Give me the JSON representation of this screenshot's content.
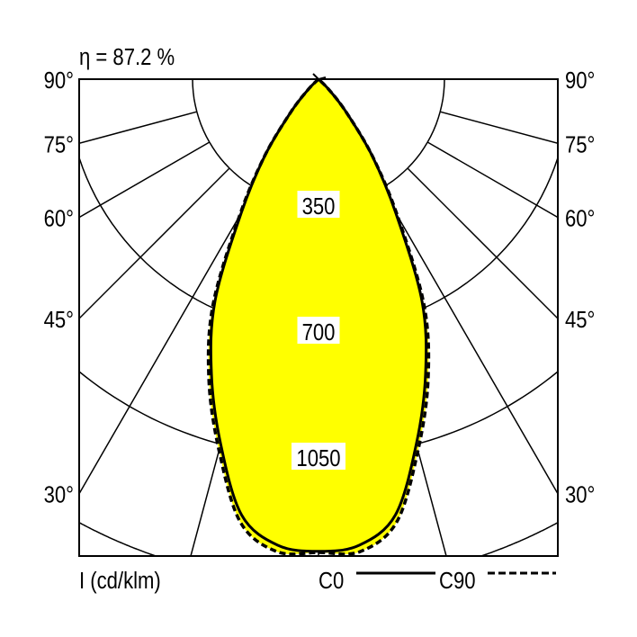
{
  "chart_data": {
    "type": "polar-line",
    "title": "η = 87.2 %",
    "unit_label": "I (cd/klm)",
    "radial_ticks": [
      350,
      700,
      1050,
      1400
    ],
    "radial_tick_labels": [
      "350",
      "700",
      "1050"
    ],
    "angle_lines_deg": [
      0,
      15,
      30,
      45,
      60,
      75,
      90
    ],
    "angle_labels": [
      {
        "angle": 90,
        "text": "90°"
      },
      {
        "angle": 75,
        "text": "75°"
      },
      {
        "angle": 60,
        "text": "60°"
      },
      {
        "angle": 45,
        "text": "45°"
      },
      {
        "angle": 30,
        "text": "30°"
      }
    ],
    "rlim": [
      0,
      1400
    ],
    "fill_color": "#ffff00",
    "legend_placement": "bottom-right",
    "series": [
      {
        "name": "C0",
        "style": "solid",
        "angles": [
          0,
          5,
          10,
          15,
          20,
          25,
          30,
          35,
          40,
          45,
          50
        ],
        "values": [
          1312,
          1300,
          1230,
          1050,
          870,
          680,
          430,
          260,
          120,
          40,
          0
        ]
      },
      {
        "name": "C90",
        "style": "dashed",
        "angles": [
          0,
          5,
          10,
          15,
          20,
          25,
          30,
          35,
          40,
          45,
          50
        ],
        "values": [
          1315,
          1318,
          1250,
          1068,
          890,
          695,
          440,
          262,
          120,
          40,
          0
        ]
      }
    ]
  }
}
